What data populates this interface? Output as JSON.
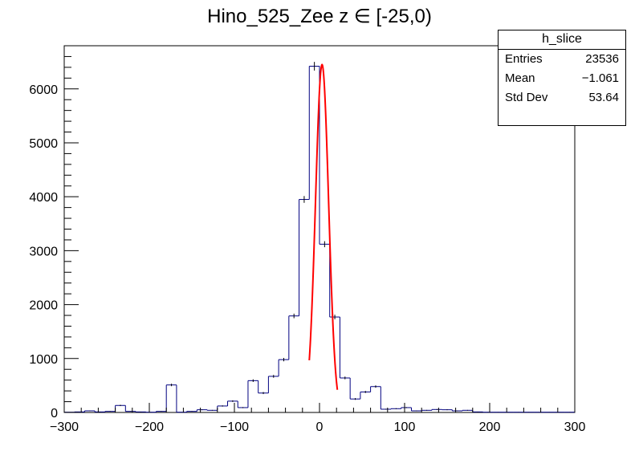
{
  "title": "Hino_525_Zee z  ∈ [-25,0)",
  "stats": {
    "name": "h_slice",
    "rows": [
      {
        "label": "Entries",
        "value": "23536"
      },
      {
        "label": "Mean",
        "value": "−1.061"
      },
      {
        "label": "Std Dev",
        "value": "53.64"
      }
    ]
  },
  "colors": {
    "histogram": "#000080",
    "fit": "#ff0000",
    "frame": "#000000"
  },
  "chart_data": {
    "type": "histogram",
    "xlim": [
      -300,
      300
    ],
    "ylim": [
      0,
      6800
    ],
    "xticks": [
      -300,
      -200,
      -100,
      0,
      100,
      200,
      300
    ],
    "xtick_labels": [
      "−300",
      "−200",
      "−100",
      "0",
      "100",
      "200",
      "300"
    ],
    "yticks": [
      0,
      1000,
      2000,
      3000,
      4000,
      5000,
      6000
    ],
    "ytick_labels": [
      "0",
      "1000",
      "2000",
      "3000",
      "4000",
      "5000",
      "6000"
    ],
    "bin_edges_start": -300,
    "bin_width": 12,
    "bin_counts": [
      5,
      10,
      30,
      10,
      20,
      130,
      20,
      10,
      5,
      20,
      510,
      5,
      20,
      50,
      40,
      120,
      210,
      90,
      590,
      360,
      670,
      980,
      1790,
      3950,
      6420,
      3120,
      1770,
      640,
      250,
      380,
      480,
      60,
      70,
      90,
      30,
      40,
      55,
      50,
      30,
      40,
      10,
      5,
      5,
      5,
      5,
      5,
      5,
      5,
      5,
      5
    ],
    "fit": {
      "type": "gaussian",
      "constant": 6450,
      "mean": 3,
      "sigma": 7.7,
      "range": [
        -12,
        21
      ]
    }
  }
}
